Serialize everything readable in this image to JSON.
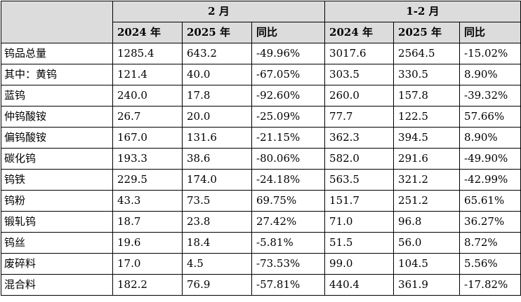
{
  "header": {
    "group_feb": "2 月",
    "group_janfeb": "1-2 月",
    "sub": [
      "2024 年",
      "2025 年",
      "同比",
      "2024 年",
      "2025 年",
      "同比"
    ]
  },
  "rows": [
    {
      "label": "钨品总量",
      "cells": [
        "1285.4",
        "643.2",
        "-49.96%",
        "3017.6",
        "2564.5",
        "-15.02%"
      ]
    },
    {
      "label": "其中：黄钨",
      "cells": [
        "121.4",
        "40.0",
        "-67.05%",
        "303.5",
        "330.5",
        "8.90%"
      ]
    },
    {
      "label": "蓝钨",
      "cells": [
        "240.0",
        "17.8",
        "-92.60%",
        "260.0",
        "157.8",
        "-39.32%"
      ]
    },
    {
      "label": "仲钨酸铵",
      "cells": [
        "26.7",
        "20.0",
        "-25.09%",
        "77.7",
        "122.5",
        "57.66%"
      ]
    },
    {
      "label": "偏钨酸铵",
      "cells": [
        "167.0",
        "131.6",
        "-21.15%",
        "362.3",
        "394.5",
        "8.90%"
      ]
    },
    {
      "label": "碳化钨",
      "cells": [
        "193.3",
        "38.6",
        "-80.06%",
        "582.0",
        "291.6",
        "-49.90%"
      ]
    },
    {
      "label": "钨铁",
      "cells": [
        "229.5",
        "174.0",
        "-24.18%",
        "563.5",
        "321.2",
        "-42.99%"
      ]
    },
    {
      "label": "钨粉",
      "cells": [
        "43.3",
        "73.5",
        "69.75%",
        "151.7",
        "251.2",
        "65.61%"
      ]
    },
    {
      "label": "锻轧钨",
      "cells": [
        "18.7",
        "23.8",
        "27.42%",
        "71.0",
        "96.8",
        "36.27%"
      ]
    },
    {
      "label": "钨丝",
      "cells": [
        "19.6",
        "18.4",
        "-5.81%",
        "51.5",
        "56.0",
        "8.72%"
      ]
    },
    {
      "label": "废碎料",
      "cells": [
        "17.0",
        "4.5",
        "-73.53%",
        "99.0",
        "104.5",
        "5.56%"
      ]
    },
    {
      "label": "混合料",
      "cells": [
        "182.2",
        "76.9",
        "-57.81%",
        "440.4",
        "361.9",
        "-17.82%"
      ]
    }
  ]
}
